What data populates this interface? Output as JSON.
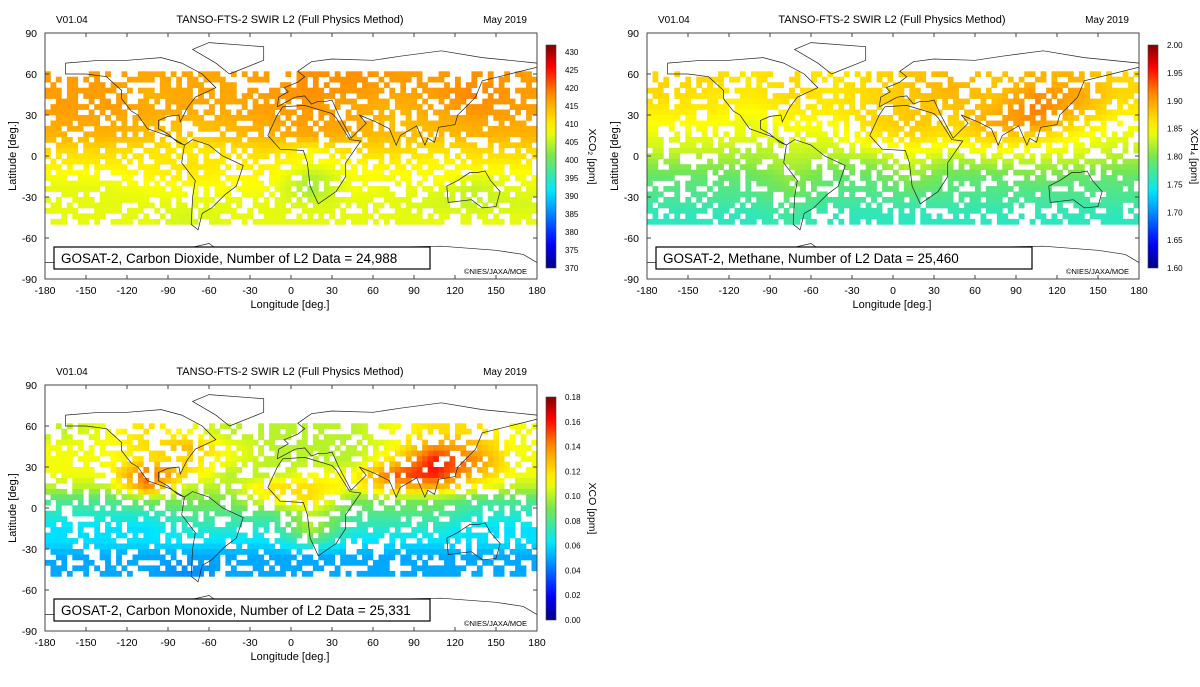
{
  "chart_data": [
    {
      "type": "heatmap",
      "version": "V01.04",
      "title": "TANSO-FTS-2 SWIR L2 (Full Physics Method)",
      "date": "May 2019",
      "label_box": "GOSAT-2, Carbon Dioxide, Number of L2 Data = 24,988",
      "copyright": "©NIES/JAXA/MOE",
      "xlabel": "Longitude [deg.]",
      "ylabel": "Latitude [deg.]",
      "xlim": [
        -180,
        180
      ],
      "ylim": [
        -90,
        90
      ],
      "xticks": [
        "-180",
        "-150",
        "-120",
        "-90",
        "-60",
        "-30",
        "0",
        "30",
        "60",
        "90",
        "120",
        "150",
        "180"
      ],
      "yticks": [
        "90",
        "60",
        "30",
        "0",
        "-30",
        "-60",
        "-90"
      ],
      "colorbar": {
        "label": "XCO₂ [ppm]",
        "range": [
          370,
          432
        ],
        "ticks": [
          "370",
          "375",
          "380",
          "385",
          "390",
          "395",
          "400",
          "405",
          "410",
          "415",
          "420",
          "425",
          "430"
        ],
        "tick_values": [
          370,
          375,
          380,
          385,
          390,
          395,
          400,
          405,
          410,
          415,
          420,
          425,
          430
        ],
        "colormap": "jet"
      },
      "grid_lat": [
        55,
        45,
        35,
        25,
        15,
        5,
        -5,
        -15,
        -25,
        -35,
        -45
      ],
      "grid_lon": [
        -165,
        -135,
        -105,
        -75,
        -45,
        -15,
        15,
        45,
        75,
        105,
        135,
        165
      ],
      "values": [
        [
          417,
          417,
          416,
          416,
          416,
          417,
          418,
          418,
          417,
          417,
          418,
          417
        ],
        [
          417,
          417,
          415,
          416,
          416,
          417,
          418,
          417,
          416,
          417,
          419,
          417
        ],
        [
          417,
          417,
          416,
          416,
          416,
          417,
          417,
          416,
          415,
          416,
          418,
          417
        ],
        [
          416,
          416,
          415,
          414,
          415,
          416,
          417,
          416,
          414,
          415,
          416,
          416
        ],
        [
          415,
          415,
          414,
          413,
          414,
          415,
          416,
          415,
          414,
          414,
          415,
          415
        ],
        [
          412,
          412,
          411,
          410,
          411,
          412,
          409,
          412,
          412,
          411,
          412,
          412
        ],
        [
          410,
          410,
          410,
          411,
          410,
          410,
          408,
          409,
          410,
          409,
          410,
          410
        ],
        [
          408,
          408,
          409,
          410,
          409,
          409,
          404,
          408,
          408,
          409,
          407,
          408
        ],
        [
          407,
          407,
          408,
          408,
          408,
          408,
          403,
          408,
          407,
          407,
          405,
          407
        ],
        [
          407,
          407,
          407,
          407,
          407,
          407,
          406,
          407,
          407,
          406,
          405,
          406
        ],
        [
          407,
          407,
          407,
          406,
          407,
          407,
          407,
          407,
          407,
          407,
          407,
          407
        ]
      ]
    },
    {
      "type": "heatmap",
      "version": "V01.04",
      "title": "TANSO-FTS-2 SWIR L2 (Full Physics Method)",
      "date": "May 2019",
      "label_box": "GOSAT-2, Methane, Number of L2 Data = 25,460",
      "copyright": "©NIES/JAXA/MOE",
      "xlabel": "Longitude [deg.]",
      "ylabel": "Latitude [deg.]",
      "xlim": [
        -180,
        180
      ],
      "ylim": [
        -90,
        90
      ],
      "xticks": [
        "-180",
        "-150",
        "-120",
        "-90",
        "-60",
        "-30",
        "0",
        "30",
        "60",
        "90",
        "120",
        "150",
        "180"
      ],
      "yticks": [
        "90",
        "60",
        "30",
        "0",
        "-30",
        "-60",
        "-90"
      ],
      "colorbar": {
        "label": "XCH₄ [ppm]",
        "range": [
          1.6,
          2.0
        ],
        "ticks": [
          "1.60",
          "1.65",
          "1.70",
          "1.75",
          "1.80",
          "1.85",
          "1.90",
          "1.95",
          "2.00"
        ],
        "tick_values": [
          1.6,
          1.65,
          1.7,
          1.75,
          1.8,
          1.85,
          1.9,
          1.95,
          2.0
        ],
        "colormap": "jet"
      },
      "grid_lat": [
        55,
        45,
        35,
        25,
        15,
        5,
        -5,
        -15,
        -25,
        -35,
        -45
      ],
      "grid_lon": [
        -165,
        -135,
        -105,
        -75,
        -45,
        -15,
        15,
        45,
        75,
        105,
        135,
        165
      ],
      "values": [
        [
          1.87,
          1.87,
          1.86,
          1.87,
          1.86,
          1.87,
          1.88,
          1.89,
          1.88,
          1.89,
          1.89,
          1.87
        ],
        [
          1.87,
          1.86,
          1.86,
          1.87,
          1.86,
          1.87,
          1.88,
          1.89,
          1.88,
          1.91,
          1.9,
          1.87
        ],
        [
          1.86,
          1.86,
          1.85,
          1.86,
          1.86,
          1.87,
          1.88,
          1.88,
          1.89,
          1.92,
          1.89,
          1.86
        ],
        [
          1.85,
          1.85,
          1.84,
          1.85,
          1.85,
          1.87,
          1.88,
          1.87,
          1.9,
          1.91,
          1.87,
          1.85
        ],
        [
          1.84,
          1.84,
          1.84,
          1.84,
          1.84,
          1.86,
          1.87,
          1.86,
          1.88,
          1.87,
          1.85,
          1.84
        ],
        [
          1.83,
          1.83,
          1.82,
          1.83,
          1.83,
          1.84,
          1.85,
          1.84,
          1.85,
          1.85,
          1.84,
          1.83
        ],
        [
          1.81,
          1.81,
          1.81,
          1.82,
          1.81,
          1.81,
          1.83,
          1.81,
          1.82,
          1.82,
          1.82,
          1.81
        ],
        [
          1.79,
          1.79,
          1.79,
          1.81,
          1.79,
          1.79,
          1.81,
          1.79,
          1.79,
          1.8,
          1.79,
          1.79
        ],
        [
          1.78,
          1.78,
          1.78,
          1.8,
          1.78,
          1.78,
          1.79,
          1.78,
          1.78,
          1.78,
          1.78,
          1.78
        ],
        [
          1.77,
          1.77,
          1.77,
          1.78,
          1.77,
          1.77,
          1.77,
          1.77,
          1.77,
          1.77,
          1.77,
          1.77
        ],
        [
          1.76,
          1.76,
          1.76,
          1.77,
          1.76,
          1.76,
          1.76,
          1.76,
          1.76,
          1.76,
          1.76,
          1.76
        ]
      ]
    },
    {
      "type": "heatmap",
      "version": "V01.04",
      "title": "TANSO-FTS-2 SWIR L2 (Full Physics Method)",
      "date": "May 2019",
      "label_box": "GOSAT-2, Carbon Monoxide, Number of L2 Data = 25,331",
      "copyright": "©NIES/JAXA/MOE",
      "xlabel": "Longitude [deg.]",
      "ylabel": "Latitude [deg.]",
      "xlim": [
        -180,
        180
      ],
      "ylim": [
        -90,
        90
      ],
      "xticks": [
        "-180",
        "-150",
        "-120",
        "-90",
        "-60",
        "-30",
        "0",
        "30",
        "60",
        "90",
        "120",
        "150",
        "180"
      ],
      "yticks": [
        "90",
        "60",
        "30",
        "0",
        "-30",
        "-60",
        "-90"
      ],
      "colorbar": {
        "label": "XCO [ppm]",
        "range": [
          0.0,
          0.18
        ],
        "ticks": [
          "0.00",
          "0.02",
          "0.04",
          "0.06",
          "0.08",
          "0.10",
          "0.12",
          "0.14",
          "0.16",
          "0.18"
        ],
        "tick_values": [
          0,
          0.02,
          0.04,
          0.06,
          0.08,
          0.1,
          0.12,
          0.14,
          0.16,
          0.18
        ],
        "colormap": "jet"
      },
      "grid_lat": [
        55,
        45,
        35,
        25,
        15,
        5,
        -5,
        -15,
        -25,
        -35,
        -45
      ],
      "grid_lon": [
        -165,
        -135,
        -105,
        -75,
        -45,
        -15,
        15,
        45,
        75,
        105,
        135,
        165
      ],
      "values": [
        [
          0.1,
          0.11,
          0.12,
          0.11,
          0.1,
          0.1,
          0.1,
          0.1,
          0.11,
          0.12,
          0.12,
          0.11
        ],
        [
          0.11,
          0.11,
          0.12,
          0.13,
          0.11,
          0.1,
          0.1,
          0.1,
          0.11,
          0.14,
          0.13,
          0.11
        ],
        [
          0.11,
          0.11,
          0.12,
          0.12,
          0.11,
          0.1,
          0.1,
          0.1,
          0.12,
          0.16,
          0.14,
          0.11
        ],
        [
          0.11,
          0.11,
          0.15,
          0.12,
          0.1,
          0.1,
          0.11,
          0.11,
          0.15,
          0.16,
          0.13,
          0.11
        ],
        [
          0.1,
          0.1,
          0.14,
          0.1,
          0.1,
          0.12,
          0.12,
          0.11,
          0.13,
          0.13,
          0.11,
          0.1
        ],
        [
          0.08,
          0.08,
          0.09,
          0.09,
          0.09,
          0.11,
          0.12,
          0.09,
          0.09,
          0.09,
          0.08,
          0.08
        ],
        [
          0.07,
          0.07,
          0.07,
          0.08,
          0.08,
          0.08,
          0.1,
          0.08,
          0.08,
          0.08,
          0.07,
          0.07
        ],
        [
          0.06,
          0.06,
          0.06,
          0.07,
          0.07,
          0.07,
          0.1,
          0.07,
          0.07,
          0.07,
          0.06,
          0.06
        ],
        [
          0.06,
          0.06,
          0.06,
          0.06,
          0.06,
          0.06,
          0.08,
          0.06,
          0.06,
          0.06,
          0.06,
          0.06
        ],
        [
          0.05,
          0.05,
          0.05,
          0.05,
          0.05,
          0.05,
          0.05,
          0.05,
          0.05,
          0.05,
          0.05,
          0.05
        ],
        [
          0.05,
          0.05,
          0.05,
          0.045,
          0.05,
          0.05,
          0.05,
          0.05,
          0.05,
          0.05,
          0.05,
          0.05
        ]
      ]
    }
  ]
}
